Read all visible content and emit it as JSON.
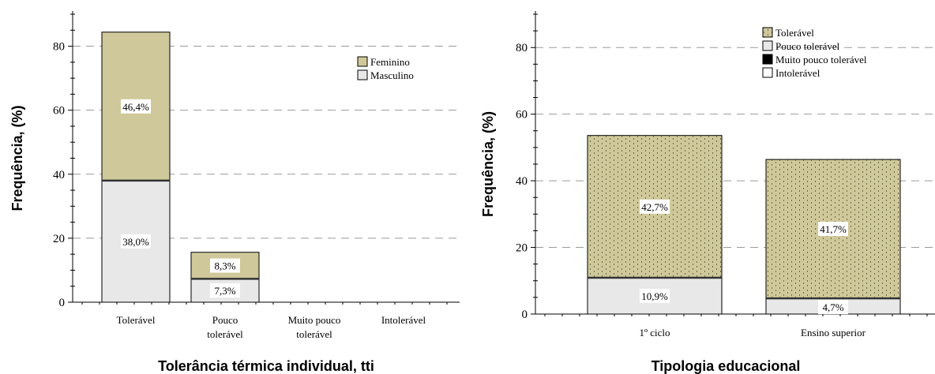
{
  "chart_data": [
    {
      "type": "bar",
      "stacked": true,
      "categories": [
        "Tolerável",
        "Pouco\ntolerável",
        "Muito pouco\ntolerável",
        "Intolerável"
      ],
      "series": [
        {
          "name": "Masculino",
          "values": [
            38.0,
            7.3,
            0,
            0
          ],
          "labels": [
            "38,0%",
            "7,3%",
            "",
            ""
          ],
          "color": "#e8e8e8"
        },
        {
          "name": "Feminino",
          "values": [
            46.4,
            8.3,
            0,
            0
          ],
          "labels": [
            "46,4%",
            "8,3%",
            "",
            ""
          ],
          "color": "#cfc89a"
        }
      ],
      "xlabel": "Tolerância térmica individual, tti",
      "ylabel": "Frequência, (%)",
      "ylim": [
        0,
        90
      ],
      "yticks": [
        "0",
        "20",
        "40",
        "60",
        "80"
      ],
      "grid": "horizontal dashed",
      "legend": "top-right"
    },
    {
      "type": "bar",
      "stacked": true,
      "categories": [
        "1º ciclo",
        "Ensino superior"
      ],
      "series": [
        {
          "name": "Intolerável",
          "values": [
            0,
            0
          ],
          "labels": [
            "",
            ""
          ],
          "color": "#ffffff"
        },
        {
          "name": "Muito pouco tolerável",
          "values": [
            0,
            0
          ],
          "labels": [
            "",
            ""
          ],
          "color": "#000000"
        },
        {
          "name": "Pouco tolerável",
          "values": [
            10.9,
            4.7
          ],
          "labels": [
            "10,9%",
            "4,7%"
          ],
          "color": "#e8e8e8"
        },
        {
          "name": "Tolerável",
          "values": [
            42.7,
            41.7
          ],
          "labels": [
            "42,7%",
            "41,7%"
          ],
          "color": "#cfc89a",
          "pattern": "dotted"
        }
      ],
      "legend_order": [
        "Tolerável",
        "Pouco tolerável",
        "Muito pouco tolerável",
        "Intolerável"
      ],
      "xlabel": "Tipologia educacional",
      "ylabel": "Frequência, (%)",
      "ylim": [
        0,
        90
      ],
      "yticks": [
        "0",
        "20",
        "40",
        "60",
        "80"
      ],
      "grid": "horizontal dashed",
      "legend": "top-right"
    }
  ]
}
